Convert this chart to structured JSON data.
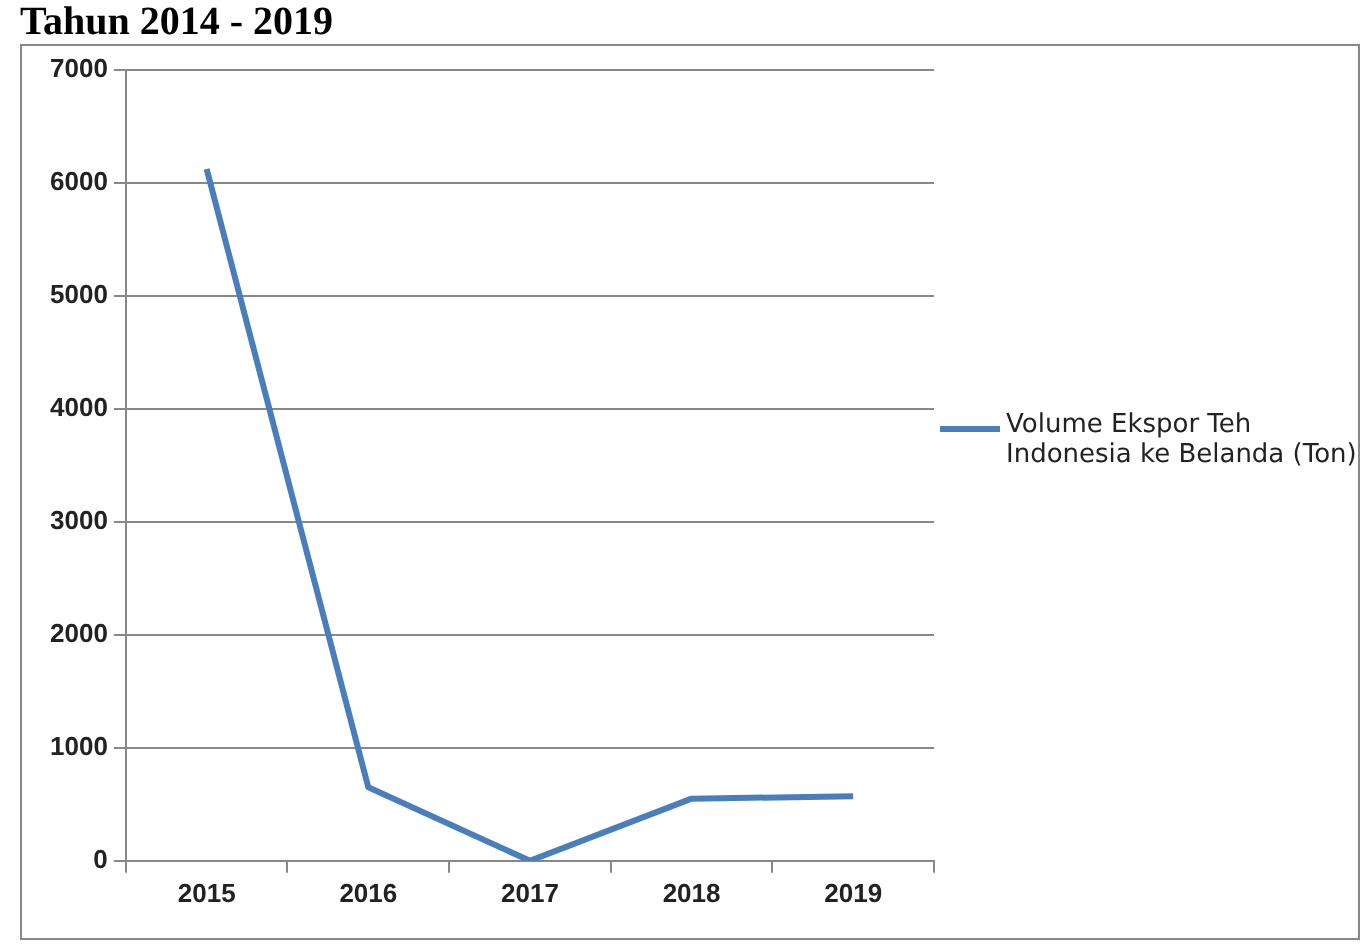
{
  "chart_data": {
    "type": "line",
    "title": "Tahun 2014 - 2019",
    "categories": [
      "2015",
      "2016",
      "2017",
      "2018",
      "2019"
    ],
    "series": [
      {
        "name": "Volume Ekspor Teh Indonesia ke Belanda (Ton)",
        "color": "#4a7ebb",
        "values": [
          6120,
          650,
          0,
          550,
          570
        ]
      }
    ],
    "ylim": [
      0,
      7000
    ],
    "yticks": [
      0,
      1000,
      2000,
      3000,
      4000,
      5000,
      6000,
      7000
    ],
    "grid": "y",
    "legend": "right",
    "marker": "none"
  }
}
